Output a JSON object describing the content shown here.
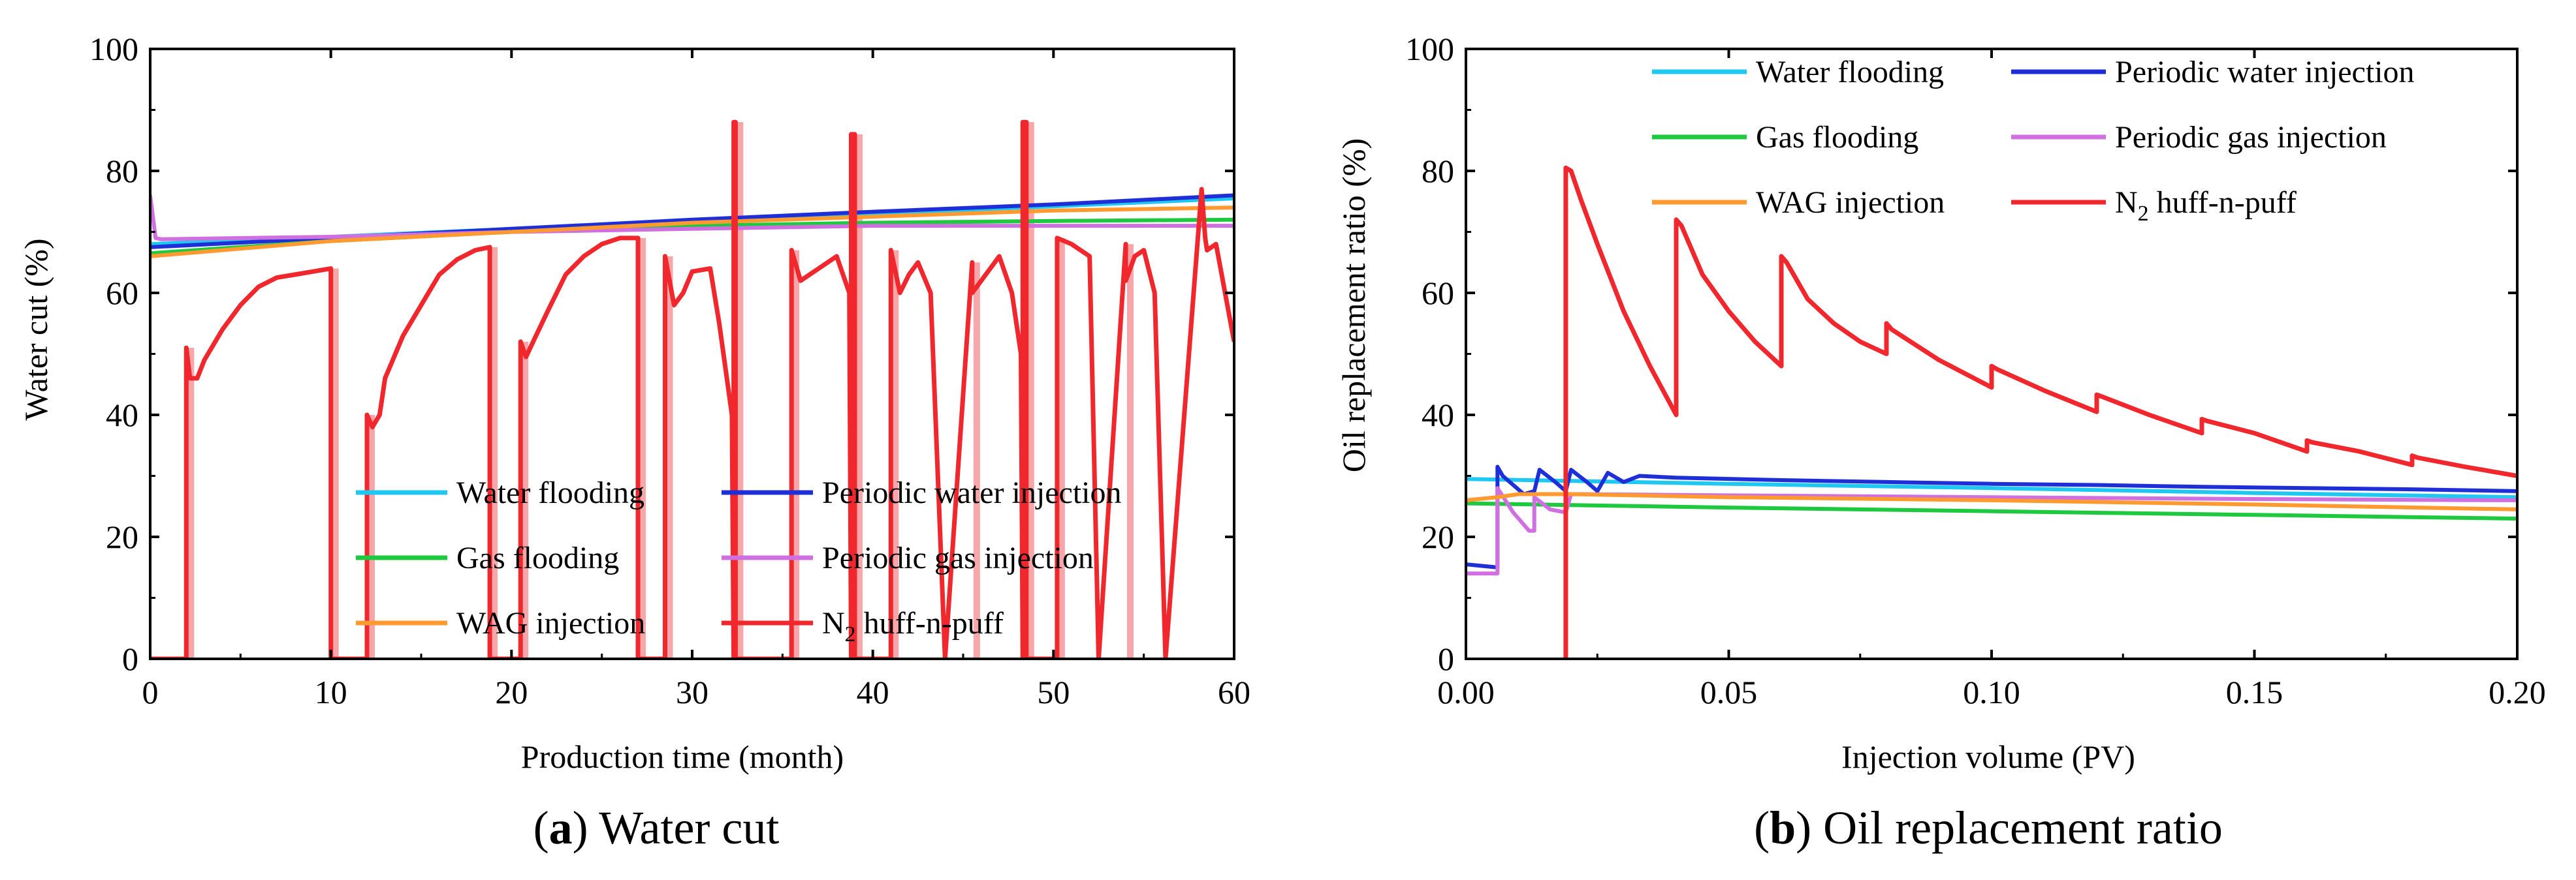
{
  "colors": {
    "water_flooding": "#1ec8f0",
    "periodic_water_injection": "#1f2fd8",
    "gas_flooding": "#1fc93f",
    "periodic_gas_injection": "#d070e0",
    "wag_injection": "#ff9a30",
    "n2_huff_n_puff": "#f0272d",
    "n2_fill": "#f7a7a9",
    "axis": "#000000"
  },
  "chart_data": [
    {
      "id": "a",
      "type": "line",
      "caption": {
        "label": "a",
        "text": " Water cut"
      },
      "xlabel": "Production time (month)",
      "ylabel": "Water cut (%)",
      "xlim": [
        0,
        60
      ],
      "ylim": [
        0,
        100
      ],
      "xticks": [
        "0",
        "10",
        "20",
        "30",
        "40",
        "50",
        "60"
      ],
      "yticks": [
        "0",
        "20",
        "40",
        "60",
        "80",
        "100"
      ],
      "legend_position": "bottom-center",
      "series": [
        {
          "key": "water_flooding",
          "name": "Water flooding",
          "x": [
            0,
            10,
            20,
            30,
            40,
            50,
            60
          ],
          "y": [
            68,
            69.2,
            70.5,
            71.8,
            73,
            74.2,
            75.5
          ]
        },
        {
          "key": "periodic_water_injection",
          "name": "Periodic water injection",
          "x": [
            0,
            10,
            20,
            30,
            40,
            50,
            60
          ],
          "y": [
            67.5,
            69,
            70.5,
            72,
            73.3,
            74.5,
            76
          ]
        },
        {
          "key": "gas_flooding",
          "name": "Gas flooding",
          "x": [
            0,
            10,
            20,
            30,
            40,
            50,
            60
          ],
          "y": [
            66.5,
            68.5,
            70,
            71,
            71.5,
            71.8,
            72
          ]
        },
        {
          "key": "periodic_gas_injection",
          "name": "Periodic gas injection",
          "x": [
            0,
            0.3,
            0.6,
            10,
            20,
            30,
            40,
            50,
            60
          ],
          "y": [
            76,
            69,
            68.8,
            69.2,
            70,
            70.5,
            71,
            71,
            71
          ]
        },
        {
          "key": "wag_injection",
          "name": "WAG injection",
          "x": [
            0,
            10,
            20,
            30,
            40,
            50,
            60
          ],
          "y": [
            66,
            68.5,
            70,
            71.5,
            72.5,
            73.5,
            74
          ]
        },
        {
          "key": "n2_huff_n_puff",
          "name": "N2 huff-n-puff",
          "name_sub": "2",
          "name_base": "N",
          "name_rest": " huff-n-puff",
          "x": [
            0,
            2,
            2,
            2.2,
            2.6,
            3,
            4,
            5,
            6,
            7,
            8,
            9,
            10,
            10,
            12,
            12,
            12.3,
            12.7,
            13,
            14,
            15,
            16,
            17,
            18,
            18.8,
            18.8,
            20.5,
            20.5,
            20.8,
            21.2,
            22,
            23,
            24,
            25,
            26,
            27,
            27,
            28.5,
            28.5,
            29,
            29.5,
            30,
            31,
            31.5,
            32.2,
            32.3,
            32.3,
            32.4,
            32.4,
            35.5,
            35.5,
            36,
            37,
            38,
            38.7,
            38.8,
            38.8,
            39,
            39,
            41,
            41,
            41.5,
            42,
            42.5,
            43.2,
            44,
            44,
            45.5,
            45.5,
            46,
            47,
            47.7,
            48.2,
            48.3,
            48.3,
            48.5,
            48.5,
            50.2,
            50.2,
            51,
            52,
            52.5,
            52.5,
            54,
            54,
            54.5,
            55,
            55.6,
            56.2,
            56.2,
            58.2,
            58.2,
            58.4,
            58.5,
            59,
            60
          ],
          "y": [
            0,
            0,
            51,
            46,
            46,
            49,
            54,
            58,
            61,
            62.5,
            63,
            63.5,
            64,
            0,
            0,
            40,
            38,
            40,
            46,
            53,
            58,
            63,
            65.5,
            67,
            67.5,
            0,
            0,
            52,
            49.5,
            52,
            57,
            63,
            66,
            68,
            69,
            69,
            0,
            0,
            66,
            58,
            60,
            63.5,
            64,
            55,
            40,
            0,
            88,
            88,
            0,
            0,
            67,
            62,
            64,
            66,
            60,
            0,
            86,
            86,
            0,
            0,
            67,
            60,
            63,
            65,
            60,
            0,
            0,
            65,
            60,
            62,
            66,
            60,
            50,
            0,
            88,
            88,
            0,
            0,
            69,
            68,
            66,
            0,
            0,
            68,
            62,
            66,
            67,
            60,
            0,
            0,
            77,
            77,
            69,
            67,
            68,
            52
          ]
        }
      ],
      "legend_entries": [
        {
          "key": "water_flooding",
          "text": "Water flooding"
        },
        {
          "key": "periodic_water_injection",
          "text": "Periodic water injection"
        },
        {
          "key": "gas_flooding",
          "text": "Gas flooding"
        },
        {
          "key": "periodic_gas_injection",
          "text": "Periodic gas injection"
        },
        {
          "key": "wag_injection",
          "text": "WAG injection"
        },
        {
          "key": "n2_huff_n_puff",
          "text": "N2 huff-n-puff"
        }
      ]
    },
    {
      "id": "b",
      "type": "line",
      "caption": {
        "label": "b",
        "text": " Oil replacement ratio"
      },
      "xlabel": "Injection volume (PV)",
      "ylabel": "Oil replacement ratio (%)",
      "xlim": [
        0,
        0.2
      ],
      "ylim": [
        0,
        100
      ],
      "xticks": [
        "0.00",
        "0.05",
        "0.10",
        "0.15",
        "0.20"
      ],
      "yticks": [
        "0",
        "20",
        "40",
        "60",
        "80",
        "100"
      ],
      "legend_position": "top-right",
      "series": [
        {
          "key": "water_flooding",
          "name": "Water flooding",
          "x": [
            0,
            0.05,
            0.1,
            0.15,
            0.2
          ],
          "y": [
            29.5,
            28.7,
            28,
            27.2,
            26.5
          ]
        },
        {
          "key": "periodic_water_injection",
          "name": "Periodic water injection",
          "x": [
            0,
            0.006,
            0.006,
            0.007,
            0.011,
            0.013,
            0.014,
            0.017,
            0.019,
            0.02,
            0.023,
            0.025,
            0.027,
            0.03,
            0.033,
            0.04,
            0.06,
            0.08,
            0.1,
            0.12,
            0.14,
            0.16,
            0.18,
            0.2
          ],
          "y": [
            15.5,
            15,
            31.5,
            30,
            27,
            27.5,
            31,
            29,
            27.5,
            31,
            29,
            27.5,
            30.5,
            29,
            30,
            29.7,
            29.3,
            29,
            28.7,
            28.5,
            28.2,
            28,
            27.8,
            27.5
          ]
        },
        {
          "key": "gas_flooding",
          "name": "Gas flooding",
          "x": [
            0,
            0.05,
            0.1,
            0.15,
            0.2
          ],
          "y": [
            25.5,
            24.8,
            24.2,
            23.6,
            23
          ]
        },
        {
          "key": "periodic_gas_injection",
          "name": "Periodic gas injection",
          "x": [
            0,
            0.006,
            0.006,
            0.009,
            0.012,
            0.013,
            0.013,
            0.016,
            0.019,
            0.02,
            0.05,
            0.1,
            0.15,
            0.2
          ],
          "y": [
            14,
            14,
            28,
            24,
            21,
            21,
            26.5,
            24.5,
            24,
            27,
            26.8,
            26.5,
            26.2,
            26
          ]
        },
        {
          "key": "wag_injection",
          "name": "WAG injection",
          "x": [
            0,
            0.006,
            0.01,
            0.015,
            0.02,
            0.05,
            0.1,
            0.15,
            0.2
          ],
          "y": [
            26,
            26.5,
            27,
            27,
            27,
            26.5,
            26,
            25.3,
            24.5
          ]
        },
        {
          "key": "n2_huff_n_puff",
          "name": "N2 huff-n-puff",
          "x": [
            0.019,
            0.019,
            0.02,
            0.022,
            0.025,
            0.03,
            0.035,
            0.04,
            0.04,
            0.041,
            0.045,
            0.05,
            0.055,
            0.06,
            0.06,
            0.061,
            0.065,
            0.07,
            0.075,
            0.08,
            0.08,
            0.081,
            0.09,
            0.1,
            0.1,
            0.101,
            0.11,
            0.12,
            0.12,
            0.121,
            0.13,
            0.14,
            0.14,
            0.141,
            0.15,
            0.16,
            0.16,
            0.161,
            0.17,
            0.18,
            0.18,
            0.181,
            0.19,
            0.2
          ],
          "y": [
            0,
            80.5,
            80,
            75,
            68,
            57,
            48,
            40,
            72,
            71,
            63,
            57,
            52,
            48,
            66,
            65,
            59,
            55,
            52,
            50,
            55,
            54,
            49,
            44.5,
            48,
            47.5,
            44,
            40.5,
            43.3,
            43,
            40,
            37,
            39.3,
            39,
            37,
            34,
            35.8,
            35.5,
            34,
            31.8,
            33.3,
            33,
            31.5,
            30
          ]
        }
      ],
      "legend_entries": [
        {
          "key": "water_flooding",
          "text": "Water flooding"
        },
        {
          "key": "periodic_water_injection",
          "text": "Periodic water injection"
        },
        {
          "key": "gas_flooding",
          "text": "Gas flooding"
        },
        {
          "key": "periodic_gas_injection",
          "text": "Periodic gas injection"
        },
        {
          "key": "wag_injection",
          "text": "WAG injection"
        },
        {
          "key": "n2_huff_n_puff",
          "text": "N2 huff-n-puff"
        }
      ]
    }
  ]
}
